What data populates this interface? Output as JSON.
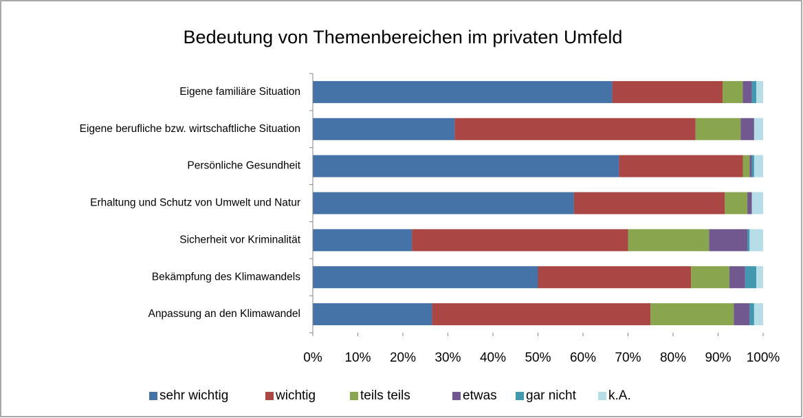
{
  "chart_data": {
    "type": "bar",
    "orientation": "horizontal",
    "stacked": true,
    "title": "Bedeutung von Themenbereichen im privaten Umfeld",
    "categories": [
      "Eigene familiäre Situation",
      "Eigene berufliche bzw. wirtschaftliche Situation",
      "Persönliche Gesundheit",
      "Erhaltung und Schutz von Umwelt und Natur",
      "Sicherheit vor Kriminalität",
      "Bekämpfung des Klimawandels",
      "Anpassung an den Klimawandel"
    ],
    "series": [
      {
        "name": "sehr wichtig",
        "color": "#4572a7",
        "values": [
          66.5,
          31.5,
          68,
          58,
          22,
          50,
          26.5
        ]
      },
      {
        "name": "wichtig",
        "color": "#aa4643",
        "values": [
          24.5,
          53.5,
          27.5,
          33.5,
          48,
          34,
          48.5
        ]
      },
      {
        "name": "teils teils",
        "color": "#89a54e",
        "values": [
          4.5,
          10,
          1.5,
          5,
          18,
          8.5,
          18.5
        ]
      },
      {
        "name": "etwas",
        "color": "#71588f",
        "values": [
          2,
          3,
          0.5,
          1,
          8.5,
          3.5,
          3.5
        ]
      },
      {
        "name": "gar nicht",
        "color": "#4198af",
        "values": [
          1,
          0,
          0.5,
          0,
          0.5,
          2.5,
          1
        ]
      },
      {
        "name": "k.A.",
        "color": "#b7dde8",
        "values": [
          1.5,
          2,
          2,
          2.5,
          3,
          1.5,
          2
        ]
      }
    ],
    "xlim": [
      0,
      100
    ],
    "xticks": [
      {
        "value": 0,
        "label": "0%"
      },
      {
        "value": 10,
        "label": "10%"
      },
      {
        "value": 20,
        "label": "20%"
      },
      {
        "value": 30,
        "label": "30%"
      },
      {
        "value": 40,
        "label": "40%"
      },
      {
        "value": 50,
        "label": "50%"
      },
      {
        "value": 60,
        "label": "60%"
      },
      {
        "value": 70,
        "label": "70%"
      },
      {
        "value": 80,
        "label": "80%"
      },
      {
        "value": 90,
        "label": "90%"
      },
      {
        "value": 100,
        "label": "100%"
      }
    ],
    "grid": false,
    "legend": "bottom"
  }
}
